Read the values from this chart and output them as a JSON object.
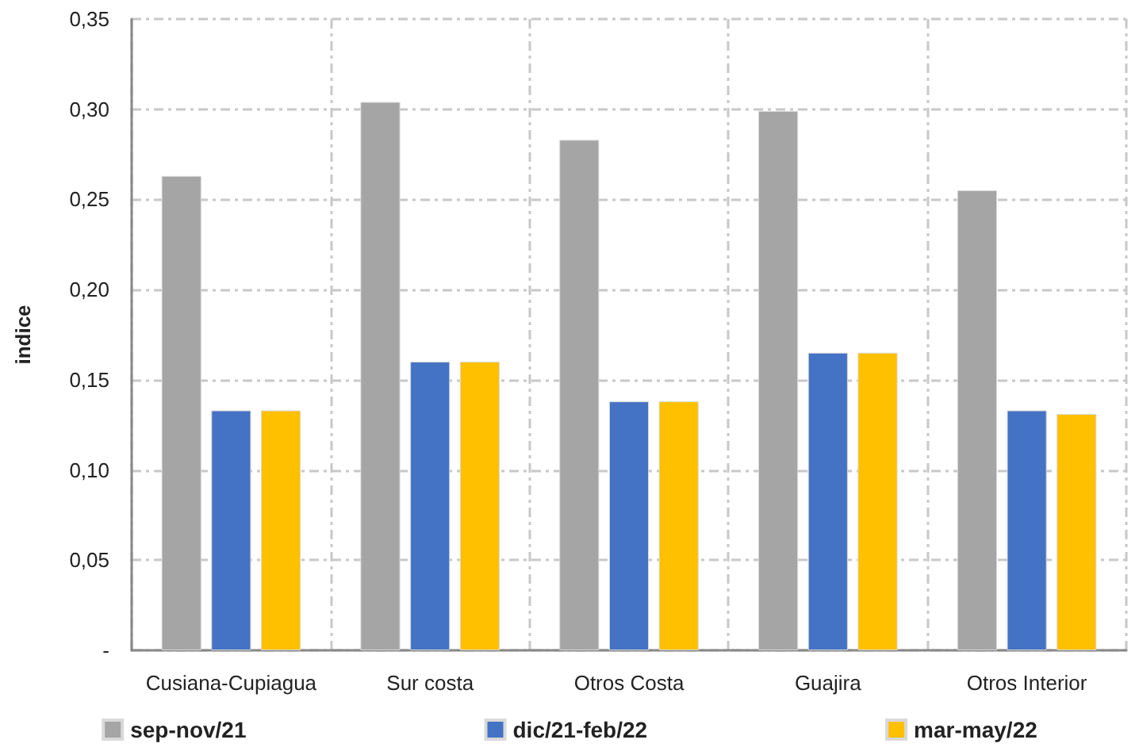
{
  "chart_data": {
    "type": "bar",
    "ylabel": "indice",
    "categories": [
      "Cusiana-Cupiagua",
      "Sur costa",
      "Otros Costa",
      "Guajira",
      "Otros Interior"
    ],
    "series": [
      {
        "name": "sep-nov/21",
        "color": "#a5a5a5",
        "values": [
          0.263,
          0.304,
          0.283,
          0.299,
          0.255
        ]
      },
      {
        "name": "dic/21-feb/22",
        "color": "#4472c4",
        "values": [
          0.133,
          0.16,
          0.138,
          0.165,
          0.133
        ]
      },
      {
        "name": "mar-may/22",
        "color": "#ffc000",
        "values": [
          0.133,
          0.16,
          0.138,
          0.165,
          0.131
        ]
      }
    ],
    "ylim": [
      0,
      0.35
    ],
    "yticks": [
      {
        "value": 0,
        "label": "-"
      },
      {
        "value": 0.05,
        "label": "0,05"
      },
      {
        "value": 0.1,
        "label": "0,10"
      },
      {
        "value": 0.15,
        "label": "0,15"
      },
      {
        "value": 0.2,
        "label": "0,20"
      },
      {
        "value": 0.25,
        "label": "0,25"
      },
      {
        "value": 0.3,
        "label": "0,30"
      },
      {
        "value": 0.35,
        "label": "0,35"
      }
    ],
    "grid": true,
    "legend": "bottom"
  }
}
